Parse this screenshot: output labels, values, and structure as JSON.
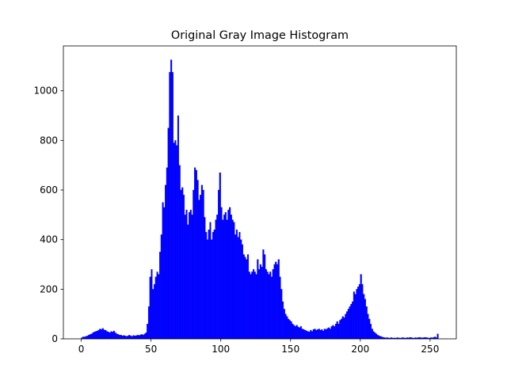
{
  "chart_data": {
    "type": "histogram",
    "title": "Original Gray Image Histogram",
    "color": "#0000ff",
    "bins": [
      0,
      1,
      2,
      3,
      4,
      5,
      6,
      7,
      8,
      9,
      10,
      11,
      12,
      13,
      14,
      15,
      16,
      17,
      18,
      19,
      20,
      21,
      22,
      23,
      24,
      25,
      26,
      27,
      28,
      29,
      30,
      31,
      32,
      33,
      34,
      35,
      36,
      37,
      38,
      39,
      40,
      41,
      42,
      43,
      44,
      45,
      46,
      47,
      48,
      49,
      50,
      51,
      52,
      53,
      54,
      55,
      56,
      57,
      58,
      59,
      60,
      61,
      62,
      63,
      64,
      65,
      66,
      67,
      68,
      69,
      70,
      71,
      72,
      73,
      74,
      75,
      76,
      77,
      78,
      79,
      80,
      81,
      82,
      83,
      84,
      85,
      86,
      87,
      88,
      89,
      90,
      91,
      92,
      93,
      94,
      95,
      96,
      97,
      98,
      99,
      100,
      101,
      102,
      103,
      104,
      105,
      106,
      107,
      108,
      109,
      110,
      111,
      112,
      113,
      114,
      115,
      116,
      117,
      118,
      119,
      120,
      121,
      122,
      123,
      124,
      125,
      126,
      127,
      128,
      129,
      130,
      131,
      132,
      133,
      134,
      135,
      136,
      137,
      138,
      139,
      140,
      141,
      142,
      143,
      144,
      145,
      146,
      147,
      148,
      149,
      150,
      151,
      152,
      153,
      154,
      155,
      156,
      157,
      158,
      159,
      160,
      161,
      162,
      163,
      164,
      165,
      166,
      167,
      168,
      169,
      170,
      171,
      172,
      173,
      174,
      175,
      176,
      177,
      178,
      179,
      180,
      181,
      182,
      183,
      184,
      185,
      186,
      187,
      188,
      189,
      190,
      191,
      192,
      193,
      194,
      195,
      196,
      197,
      198,
      199,
      200,
      201,
      202,
      203,
      204,
      205,
      206,
      207,
      208,
      209,
      210,
      211,
      212,
      213,
      214,
      215,
      216,
      217,
      218,
      219,
      220,
      221,
      222,
      223,
      224,
      225,
      226,
      227,
      228,
      229,
      230,
      231,
      232,
      233,
      234,
      235,
      236,
      237,
      238,
      239,
      240,
      241,
      242,
      243,
      244,
      245,
      246,
      247,
      248,
      249,
      250,
      251,
      252,
      253,
      254,
      255,
      256
    ],
    "counts": [
      5,
      8,
      8,
      10,
      12,
      15,
      18,
      20,
      25,
      28,
      30,
      32,
      35,
      40,
      38,
      42,
      36,
      35,
      30,
      28,
      25,
      30,
      28,
      32,
      25,
      20,
      18,
      15,
      15,
      12,
      14,
      12,
      10,
      12,
      15,
      12,
      10,
      14,
      12,
      13,
      15,
      14,
      16,
      18,
      15,
      20,
      25,
      60,
      130,
      250,
      280,
      200,
      220,
      250,
      270,
      260,
      350,
      420,
      550,
      530,
      620,
      690,
      850,
      1075,
      1125,
      1075,
      790,
      800,
      780,
      900,
      700,
      600,
      610,
      580,
      500,
      520,
      460,
      510,
      520,
      500,
      600,
      690,
      680,
      640,
      560,
      580,
      620,
      600,
      490,
      430,
      400,
      440,
      470,
      400,
      430,
      440,
      480,
      500,
      600,
      670,
      530,
      480,
      500,
      510,
      480,
      520,
      530,
      500,
      480,
      470,
      420,
      440,
      410,
      430,
      400,
      380,
      340,
      330,
      320,
      340,
      270,
      260,
      270,
      280,
      270,
      260,
      320,
      280,
      300,
      290,
      360,
      340,
      280,
      270,
      260,
      270,
      250,
      280,
      300,
      310,
      300,
      320,
      250,
      200,
      150,
      120,
      100,
      90,
      80,
      75,
      70,
      60,
      55,
      50,
      55,
      48,
      45,
      50,
      40,
      38,
      35,
      32,
      30,
      28,
      35,
      30,
      38,
      40,
      35,
      38,
      40,
      35,
      38,
      32,
      40,
      38,
      42,
      45,
      40,
      50,
      55,
      50,
      60,
      70,
      60,
      75,
      80,
      90,
      85,
      100,
      110,
      120,
      130,
      140,
      150,
      190,
      180,
      200,
      210,
      220,
      260,
      220,
      180,
      160,
      130,
      100,
      80,
      60,
      40,
      30,
      25,
      20,
      15,
      12,
      10,
      8,
      6,
      5,
      4,
      5,
      3,
      4,
      5,
      3,
      4,
      3,
      5,
      4,
      3,
      4,
      5,
      4,
      3,
      5,
      4,
      6,
      5,
      4,
      3,
      5,
      4,
      5,
      6,
      5,
      4,
      5,
      6,
      5,
      4,
      3,
      5,
      4,
      6,
      8,
      5,
      20
    ],
    "xlim": [
      -12.8,
      268.8
    ],
    "xticks": [
      0,
      50,
      100,
      150,
      200,
      250
    ],
    "ylim": [
      0,
      1181
    ],
    "yticks": [
      0,
      200,
      400,
      600,
      800,
      1000
    ],
    "grid": false
  }
}
